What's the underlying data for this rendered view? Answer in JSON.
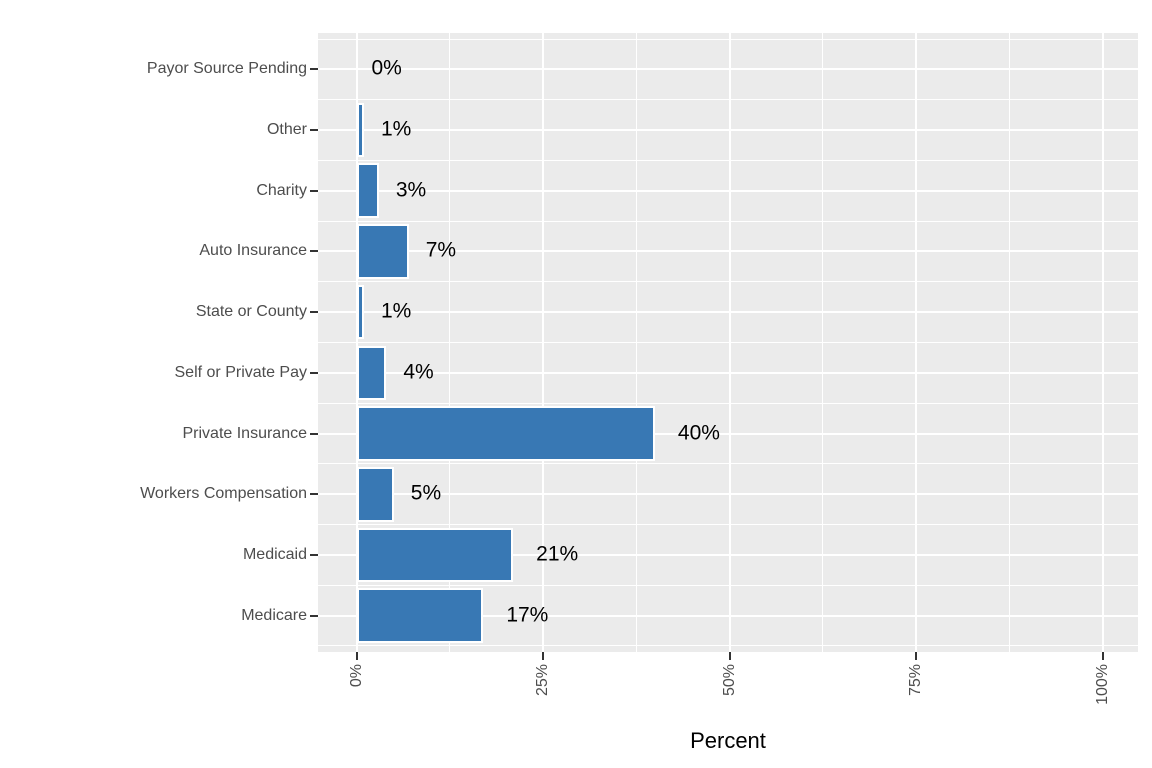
{
  "chart_data": {
    "type": "bar",
    "orientation": "horizontal",
    "title": "",
    "xlabel": "Percent",
    "ylabel": "",
    "categories": [
      "Payor Source Pending",
      "Other",
      "Charity",
      "Auto Insurance",
      "State or County",
      "Self or Private Pay",
      "Private Insurance",
      "Workers Compensation",
      "Medicaid",
      "Medicare"
    ],
    "values": [
      0,
      1,
      3,
      7,
      1,
      4,
      40,
      5,
      21,
      17
    ],
    "value_labels": [
      "0%",
      "1%",
      "3%",
      "7%",
      "1%",
      "4%",
      "40%",
      "5%",
      "21%",
      "17%"
    ],
    "x_ticks": [
      {
        "value": 0,
        "label": "0%"
      },
      {
        "value": 25,
        "label": "25%"
      },
      {
        "value": 50,
        "label": "50%"
      },
      {
        "value": 75,
        "label": "75%"
      },
      {
        "value": 100,
        "label": "100%"
      }
    ],
    "x_minor_ticks": [
      12.5,
      37.5,
      62.5,
      87.5
    ],
    "xlim": [
      0,
      100
    ],
    "grid": true,
    "legend": false,
    "colors": {
      "bar_fill": "#3878B4",
      "bar_stroke": "#FFFFFF",
      "panel_background": "#EBEBEB",
      "gridline": "#FFFFFF",
      "axis_text": "#4D4D4D",
      "tick_mark": "#333333",
      "value_label": "#000000",
      "figure_background": "#FFFFFF"
    }
  }
}
